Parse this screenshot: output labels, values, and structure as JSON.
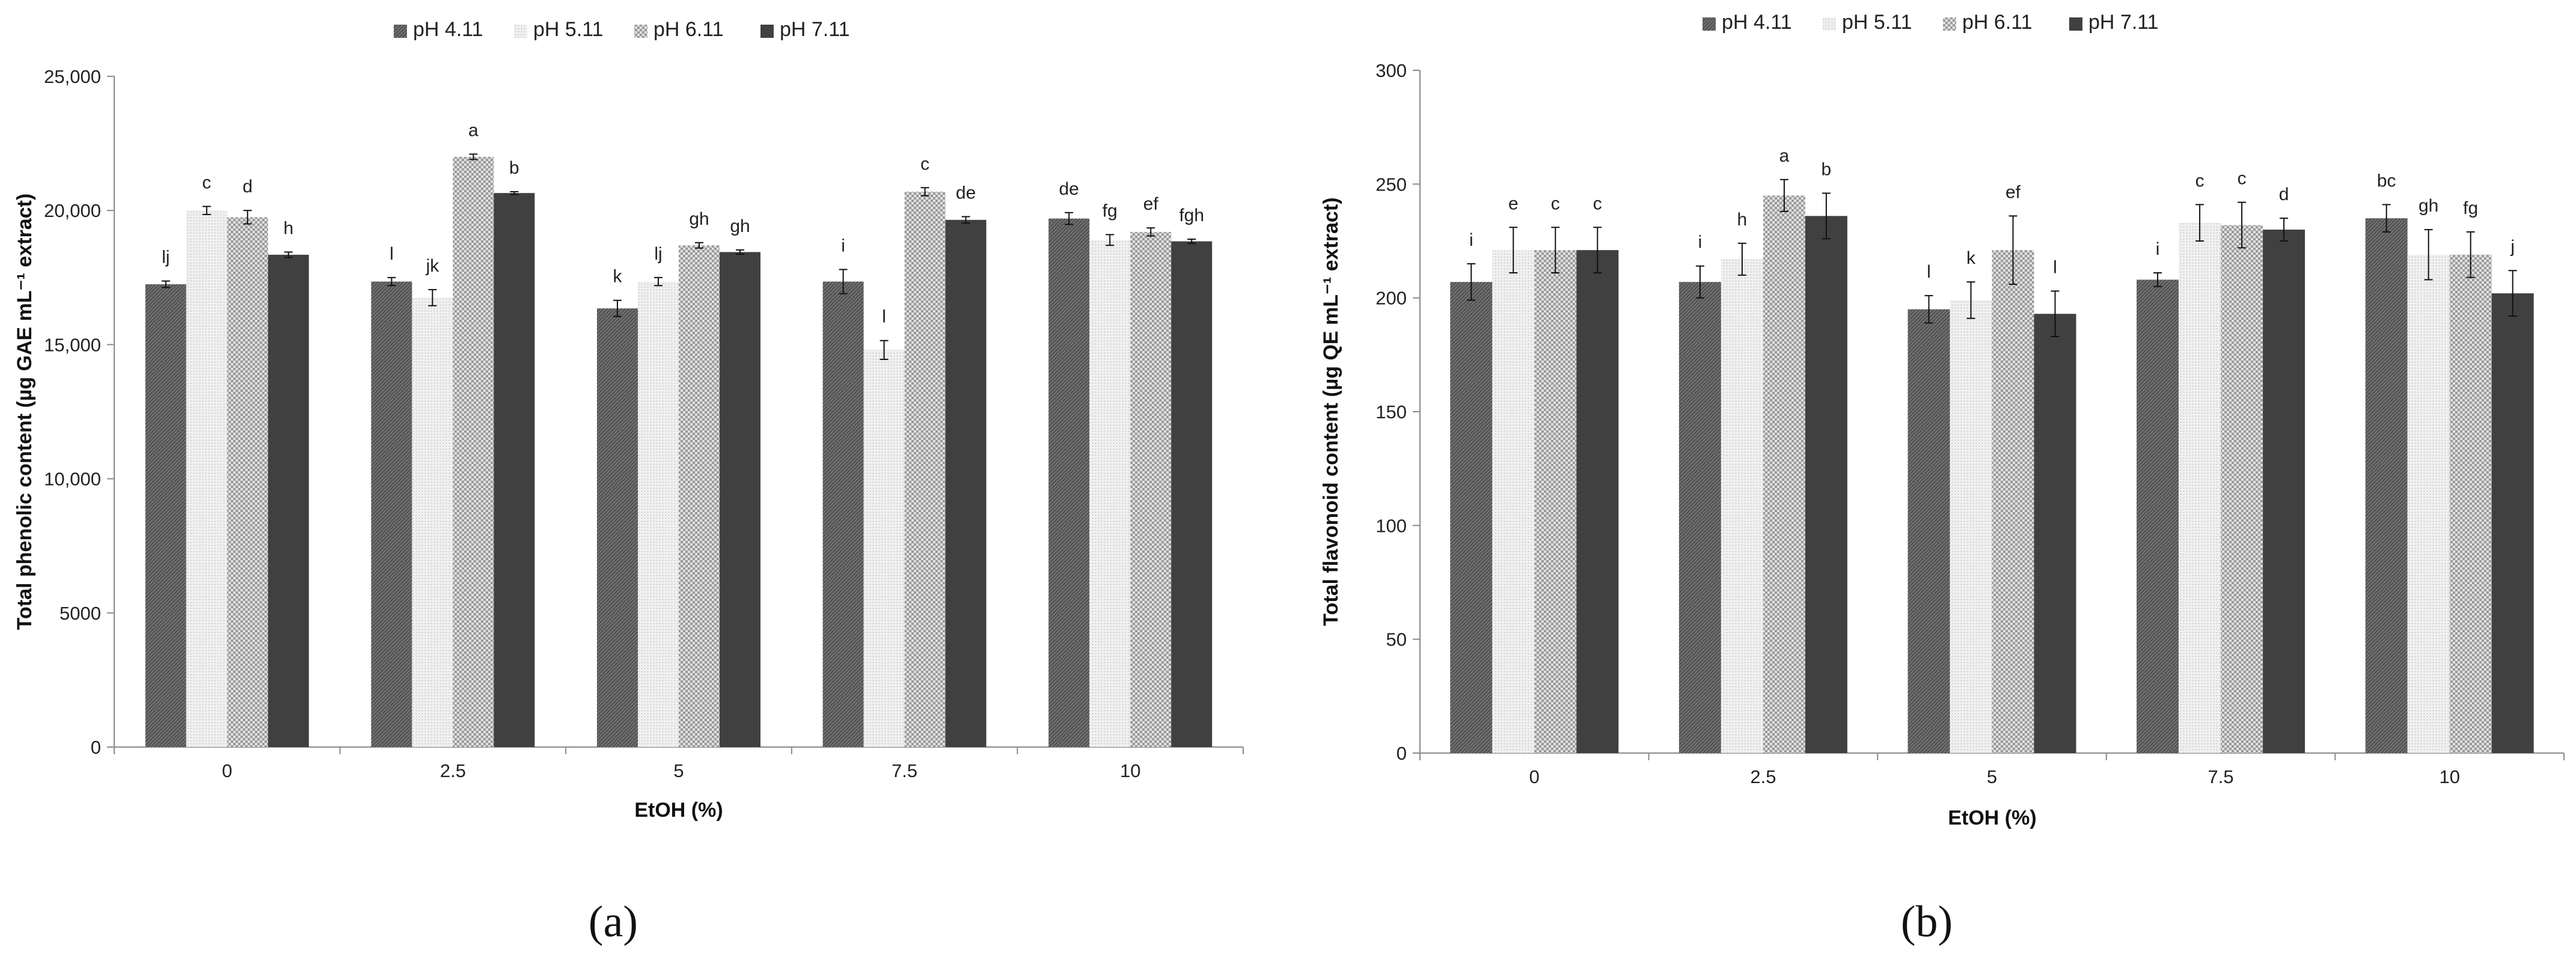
{
  "chart_data": [
    {
      "type": "bar",
      "panel_label": "(a)",
      "xlabel": "EtOH (%)",
      "ylabel": "Total phenolic content (µg GAE mL⁻¹ extract)",
      "ylim": [
        0,
        25000
      ],
      "yticks": [
        "0",
        "5000",
        "10,000",
        "15,000",
        "20,000",
        "25,000"
      ],
      "ytick_values": [
        0,
        5000,
        10000,
        15000,
        20000,
        25000
      ],
      "categories": [
        "0",
        "2.5",
        "5",
        "7.5",
        "10"
      ],
      "legend_position": "top",
      "series": [
        {
          "name": "pH 4.11",
          "values": [
            17250,
            17350,
            16350,
            17350,
            19700
          ],
          "errors": [
            120,
            150,
            300,
            450,
            220
          ],
          "letters": [
            "lj",
            "l",
            "k",
            "i",
            "de"
          ]
        },
        {
          "name": "pH 5.11",
          "values": [
            20000,
            16750,
            17350,
            14800,
            18900
          ],
          "errors": [
            150,
            300,
            150,
            350,
            200
          ],
          "letters": [
            "c",
            "jk",
            "lj",
            "l",
            "fg"
          ]
        },
        {
          "name": "pH 6.11",
          "values": [
            19750,
            22000,
            18700,
            20700,
            19200
          ],
          "errors": [
            250,
            100,
            100,
            150,
            150
          ],
          "letters": [
            "d",
            "a",
            "gh",
            "c",
            "ef"
          ]
        },
        {
          "name": "pH 7.11",
          "values": [
            18350,
            20650,
            18450,
            19650,
            18850
          ],
          "errors": [
            100,
            50,
            80,
            120,
            80
          ],
          "letters": [
            "h",
            "b",
            "gh",
            "de",
            "fgh"
          ]
        }
      ]
    },
    {
      "type": "bar",
      "panel_label": "(b)",
      "xlabel": "EtOH (%)",
      "ylabel": "Total flavonoid content  (µg QE mL⁻¹ extract)",
      "ylim": [
        0,
        300
      ],
      "yticks": [
        "0",
        "50",
        "100",
        "150",
        "200",
        "250",
        "300"
      ],
      "ytick_values": [
        0,
        50,
        100,
        150,
        200,
        250,
        300
      ],
      "categories": [
        "0",
        "2.5",
        "5",
        "7.5",
        "10"
      ],
      "legend_position": "top",
      "series": [
        {
          "name": "pH 4.11",
          "values": [
            207,
            207,
            195,
            208,
            235
          ],
          "errors": [
            8,
            7,
            6,
            3,
            6
          ],
          "letters": [
            "i",
            "i",
            "l",
            "i",
            "bc"
          ]
        },
        {
          "name": "pH 5.11",
          "values": [
            221,
            217,
            199,
            233,
            219
          ],
          "errors": [
            10,
            7,
            8,
            8,
            11
          ],
          "letters": [
            "e",
            "h",
            "k",
            "c",
            "gh"
          ]
        },
        {
          "name": "pH 6.11",
          "values": [
            221,
            245,
            221,
            232,
            219
          ],
          "errors": [
            10,
            7,
            15,
            10,
            10
          ],
          "letters": [
            "c",
            "a",
            "ef",
            "c",
            "fg"
          ]
        },
        {
          "name": "pH 7.11",
          "values": [
            221,
            236,
            193,
            230,
            202
          ],
          "errors": [
            10,
            10,
            10,
            5,
            10
          ],
          "letters": [
            "c",
            "b",
            "l",
            "d",
            "j"
          ]
        }
      ]
    }
  ],
  "series_colors": [
    "#6b6b6b",
    "#eaeaea",
    "#c8c8c8",
    "#404040"
  ],
  "series_patterns": [
    "diag-dark",
    "dots-light",
    "checker",
    "solid"
  ]
}
